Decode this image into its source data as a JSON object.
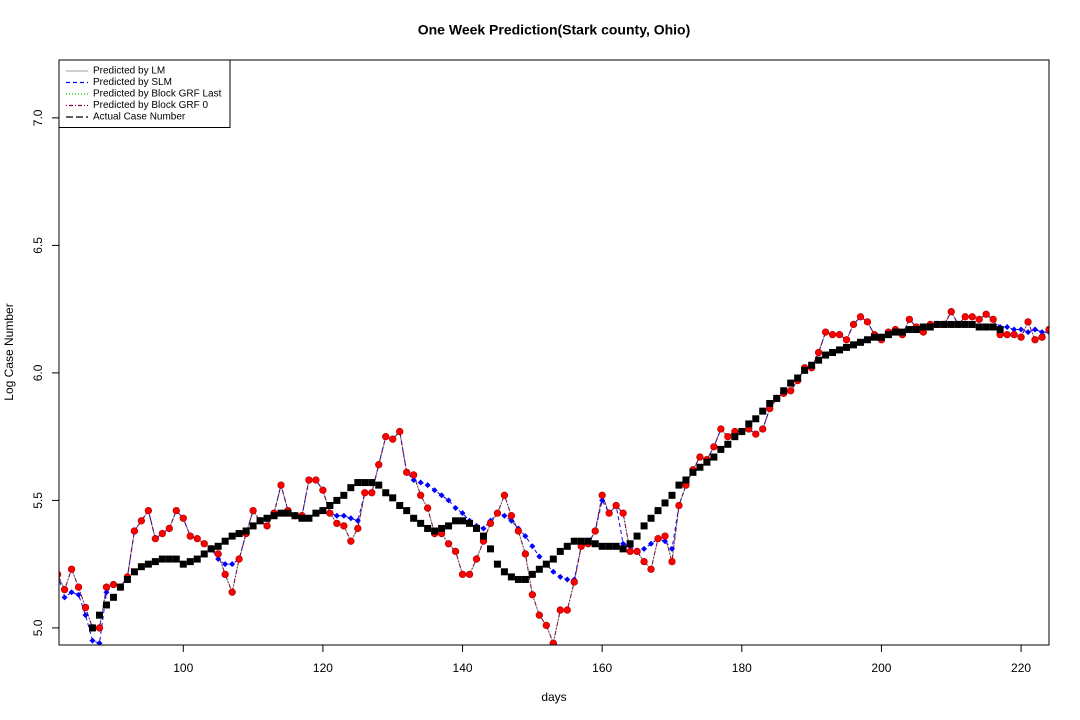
{
  "chart_data": {
    "type": "line",
    "title": "One Week Prediction(Stark county, Ohio)",
    "xlabel": "days",
    "ylabel": "Log Case Number",
    "xlim": [
      82.2,
      224
    ],
    "ylim": [
      4.933,
      7.227
    ],
    "xticks": [
      100,
      120,
      140,
      160,
      180,
      200,
      220
    ],
    "yticks": [
      {
        "value": 5,
        "label": "5.0"
      },
      {
        "value": 5.5,
        "label": "5.5"
      },
      {
        "value": 6,
        "label": "6.0"
      },
      {
        "value": 6.5,
        "label": "6.5"
      },
      {
        "value": 7,
        "label": "7.0"
      }
    ],
    "legend": "top-left",
    "x": [
      82,
      83,
      84,
      85,
      86,
      87,
      88,
      89,
      90,
      91,
      92,
      93,
      94,
      95,
      96,
      97,
      98,
      99,
      100,
      101,
      102,
      103,
      104,
      105,
      106,
      107,
      108,
      109,
      110,
      111,
      112,
      113,
      114,
      115,
      116,
      117,
      118,
      119,
      120,
      121,
      122,
      123,
      124,
      125,
      126,
      127,
      128,
      129,
      130,
      131,
      132,
      133,
      134,
      135,
      136,
      137,
      138,
      139,
      140,
      141,
      142,
      143,
      144,
      145,
      146,
      147,
      148,
      149,
      150,
      151,
      152,
      153,
      154,
      155,
      156,
      157,
      158,
      159,
      160,
      161,
      162,
      163,
      164,
      165,
      166,
      167,
      168,
      169,
      170,
      171,
      172,
      173,
      174,
      175,
      176,
      177,
      178,
      179,
      180,
      181,
      182,
      183,
      184,
      185,
      186,
      187,
      188,
      189,
      190,
      191,
      192,
      193,
      194,
      195,
      196,
      197,
      198,
      199,
      200,
      201,
      202,
      203,
      204,
      205,
      206,
      207,
      208,
      209,
      210,
      211,
      212,
      213,
      214,
      215,
      216,
      217,
      218,
      219,
      220,
      221,
      222,
      223,
      224
    ],
    "series": [
      {
        "name": "Predicted by LM",
        "color": "#b0b0b0",
        "dash": "solid",
        "marker": null,
        "values": [
          5.21,
          5.15,
          5.23,
          5.16,
          5.08,
          5.0,
          5.0,
          5.16,
          5.17,
          5.16,
          5.2,
          5.38,
          5.42,
          5.46,
          5.35,
          5.37,
          5.39,
          5.46,
          5.43,
          5.36,
          5.35,
          5.33,
          5.31,
          5.29,
          5.21,
          5.14,
          5.27,
          5.37,
          5.46,
          5.42,
          5.4,
          5.45,
          5.56,
          5.46,
          5.44,
          5.44,
          5.58,
          5.58,
          5.54,
          5.45,
          5.41,
          5.4,
          5.34,
          5.39,
          5.53,
          5.53,
          5.64,
          5.75,
          5.74,
          5.77,
          5.61,
          5.6,
          5.52,
          5.47,
          5.37,
          5.37,
          5.33,
          5.3,
          5.21,
          5.21,
          5.27,
          5.34,
          5.41,
          5.45,
          5.52,
          5.44,
          5.38,
          5.29,
          5.13,
          5.05,
          5.01,
          4.94,
          5.07,
          5.07,
          5.18,
          5.32,
          5.33,
          5.38,
          5.52,
          5.45,
          5.48,
          5.45,
          5.3,
          5.3,
          5.26,
          5.23,
          5.35,
          5.36,
          5.26,
          5.48,
          5.56,
          5.62,
          5.67,
          5.66,
          5.71,
          5.78,
          5.75,
          5.77,
          5.77,
          5.78,
          5.76,
          5.78,
          5.86,
          5.9,
          5.92,
          5.93,
          5.97,
          6.02,
          6.02,
          6.08,
          6.16,
          6.15,
          6.15,
          6.13,
          6.19,
          6.22,
          6.2,
          6.15,
          6.13,
          6.16,
          6.17,
          6.15,
          6.21,
          6.18,
          6.16,
          6.19,
          6.19,
          6.19,
          6.24,
          6.19,
          6.22,
          6.22,
          6.21,
          6.23,
          6.21,
          6.15,
          6.15,
          6.15,
          6.14,
          6.2,
          6.13,
          6.14,
          6.17
        ]
      },
      {
        "name": "Predicted by SLM",
        "color": "#0000ff",
        "dash": "dashed",
        "marker": "diamond",
        "marker_color": "#0000ff",
        "values": [
          5.21,
          5.12,
          5.14,
          5.13,
          5.05,
          4.95,
          4.94,
          5.14,
          5.17,
          5.16,
          5.2,
          5.38,
          5.42,
          5.46,
          5.35,
          5.37,
          5.39,
          5.46,
          5.43,
          5.36,
          5.35,
          5.33,
          5.31,
          5.27,
          5.25,
          5.25,
          5.27,
          5.37,
          5.46,
          5.42,
          5.4,
          5.45,
          5.56,
          5.46,
          5.44,
          5.44,
          5.58,
          5.58,
          5.54,
          5.45,
          5.44,
          5.44,
          5.43,
          5.42,
          5.53,
          5.53,
          5.64,
          5.75,
          5.74,
          5.77,
          5.61,
          5.58,
          5.57,
          5.56,
          5.54,
          5.52,
          5.5,
          5.47,
          5.45,
          5.42,
          5.4,
          5.39,
          5.42,
          5.45,
          5.44,
          5.42,
          5.39,
          5.36,
          5.32,
          5.28,
          5.25,
          5.22,
          5.2,
          5.19,
          5.19,
          5.32,
          5.33,
          5.38,
          5.5,
          5.45,
          5.48,
          5.33,
          5.32,
          5.3,
          5.31,
          5.33,
          5.35,
          5.34,
          5.31,
          5.48,
          5.56,
          5.62,
          5.67,
          5.66,
          5.71,
          5.78,
          5.75,
          5.77,
          5.77,
          5.78,
          5.76,
          5.78,
          5.86,
          5.9,
          5.92,
          5.93,
          5.97,
          6.02,
          6.02,
          6.08,
          6.16,
          6.15,
          6.15,
          6.13,
          6.19,
          6.22,
          6.2,
          6.15,
          6.13,
          6.16,
          6.17,
          6.15,
          6.21,
          6.18,
          6.16,
          6.19,
          6.19,
          6.19,
          6.24,
          6.19,
          6.22,
          6.22,
          6.21,
          6.23,
          6.21,
          6.18,
          6.18,
          6.17,
          6.17,
          6.16,
          6.17,
          6.16,
          6.16
        ]
      },
      {
        "name": "Predicted by Block GRF Last",
        "color": "#00cc00",
        "dash": "dotted",
        "marker": null,
        "values": [
          5.21,
          5.15,
          5.23,
          5.16,
          5.08,
          5.0,
          5.0,
          5.16,
          5.17,
          5.16,
          5.2,
          5.38,
          5.42,
          5.46,
          5.35,
          5.37,
          5.39,
          5.46,
          5.43,
          5.36,
          5.35,
          5.33,
          5.31,
          5.29,
          5.21,
          5.14,
          5.27,
          5.37,
          5.46,
          5.42,
          5.4,
          5.45,
          5.56,
          5.46,
          5.44,
          5.44,
          5.58,
          5.58,
          5.54,
          5.45,
          5.41,
          5.4,
          5.34,
          5.39,
          5.53,
          5.53,
          5.64,
          5.75,
          5.74,
          5.77,
          5.61,
          5.6,
          5.52,
          5.47,
          5.37,
          5.37,
          5.33,
          5.3,
          5.21,
          5.21,
          5.27,
          5.34,
          5.41,
          5.45,
          5.52,
          5.44,
          5.38,
          5.29,
          5.13,
          5.05,
          5.01,
          4.94,
          5.07,
          5.07,
          5.18,
          5.32,
          5.33,
          5.38,
          5.52,
          5.45,
          5.48,
          5.45,
          5.3,
          5.3,
          5.26,
          5.23,
          5.35,
          5.36,
          5.26,
          5.48,
          5.56,
          5.62,
          5.67,
          5.66,
          5.71,
          5.78,
          5.75,
          5.77,
          5.77,
          5.78,
          5.76,
          5.78,
          5.86,
          5.9,
          5.92,
          5.93,
          5.97,
          6.02,
          6.02,
          6.08,
          6.16,
          6.15,
          6.15,
          6.13,
          6.19,
          6.22,
          6.2,
          6.15,
          6.13,
          6.16,
          6.17,
          6.15,
          6.21,
          6.18,
          6.16,
          6.19,
          6.19,
          6.19,
          6.24,
          6.19,
          6.22,
          6.22,
          6.21,
          6.23,
          6.21,
          6.15,
          6.15,
          6.15,
          6.14,
          6.2,
          6.13,
          6.14,
          6.17
        ]
      },
      {
        "name": "Predicted by Block GRF 0",
        "color": "#8b0045",
        "dash": "dotdash",
        "marker": "circle",
        "marker_color": "#ff0000",
        "values": [
          5.21,
          5.15,
          5.23,
          5.16,
          5.08,
          5.0,
          5.0,
          5.16,
          5.17,
          5.16,
          5.2,
          5.38,
          5.42,
          5.46,
          5.35,
          5.37,
          5.39,
          5.46,
          5.43,
          5.36,
          5.35,
          5.33,
          5.31,
          5.29,
          5.21,
          5.14,
          5.27,
          5.37,
          5.46,
          5.42,
          5.4,
          5.45,
          5.56,
          5.46,
          5.44,
          5.44,
          5.58,
          5.58,
          5.54,
          5.45,
          5.41,
          5.4,
          5.34,
          5.39,
          5.53,
          5.53,
          5.64,
          5.75,
          5.74,
          5.77,
          5.61,
          5.6,
          5.52,
          5.47,
          5.37,
          5.37,
          5.33,
          5.3,
          5.21,
          5.21,
          5.27,
          5.34,
          5.41,
          5.45,
          5.52,
          5.44,
          5.38,
          5.29,
          5.13,
          5.05,
          5.01,
          4.94,
          5.07,
          5.07,
          5.18,
          5.32,
          5.33,
          5.38,
          5.52,
          5.45,
          5.48,
          5.45,
          5.3,
          5.3,
          5.26,
          5.23,
          5.35,
          5.36,
          5.26,
          5.48,
          5.56,
          5.62,
          5.67,
          5.66,
          5.71,
          5.78,
          5.75,
          5.77,
          5.77,
          5.78,
          5.76,
          5.78,
          5.86,
          5.9,
          5.92,
          5.93,
          5.97,
          6.02,
          6.02,
          6.08,
          6.16,
          6.15,
          6.15,
          6.13,
          6.19,
          6.22,
          6.2,
          6.15,
          6.13,
          6.16,
          6.17,
          6.15,
          6.21,
          6.18,
          6.16,
          6.19,
          6.19,
          6.19,
          6.24,
          6.19,
          6.22,
          6.22,
          6.21,
          6.23,
          6.21,
          6.15,
          6.15,
          6.15,
          6.14,
          6.2,
          6.13,
          6.14,
          6.17
        ]
      },
      {
        "name": "Actual Case Number",
        "color": "#000000",
        "dash": "longdash",
        "marker": "square",
        "marker_color": "#000000",
        "line": false,
        "values": [
          null,
          null,
          null,
          null,
          null,
          5.0,
          5.05,
          5.09,
          5.12,
          5.16,
          5.19,
          5.22,
          5.24,
          5.25,
          5.26,
          5.27,
          5.27,
          5.27,
          5.25,
          5.26,
          5.27,
          5.29,
          5.31,
          5.32,
          5.34,
          5.36,
          5.37,
          5.38,
          5.4,
          5.42,
          5.43,
          5.44,
          5.45,
          5.45,
          5.44,
          5.43,
          5.43,
          5.45,
          5.46,
          5.48,
          5.5,
          5.52,
          5.55,
          5.57,
          5.57,
          5.57,
          5.56,
          5.53,
          5.51,
          5.48,
          5.46,
          5.43,
          5.41,
          5.39,
          5.38,
          5.39,
          5.4,
          5.42,
          5.42,
          5.41,
          5.39,
          5.36,
          5.31,
          5.25,
          5.22,
          5.2,
          5.19,
          5.19,
          5.21,
          5.23,
          5.25,
          5.27,
          5.3,
          5.32,
          5.34,
          5.34,
          5.34,
          5.33,
          5.32,
          5.32,
          5.32,
          5.31,
          5.33,
          5.36,
          5.4,
          5.43,
          5.46,
          5.49,
          5.52,
          5.56,
          5.58,
          5.61,
          5.63,
          5.65,
          5.67,
          5.7,
          5.72,
          5.75,
          5.77,
          5.8,
          5.82,
          5.85,
          5.88,
          5.9,
          5.93,
          5.96,
          5.98,
          6.01,
          6.03,
          6.05,
          6.07,
          6.08,
          6.09,
          6.1,
          6.11,
          6.12,
          6.13,
          6.14,
          6.14,
          6.15,
          6.16,
          6.16,
          6.17,
          6.17,
          6.18,
          6.18,
          6.19,
          6.19,
          6.19,
          6.19,
          6.19,
          6.19,
          6.18,
          6.18,
          6.18,
          6.17,
          null,
          null,
          null,
          null,
          null,
          null,
          null
        ]
      }
    ]
  }
}
